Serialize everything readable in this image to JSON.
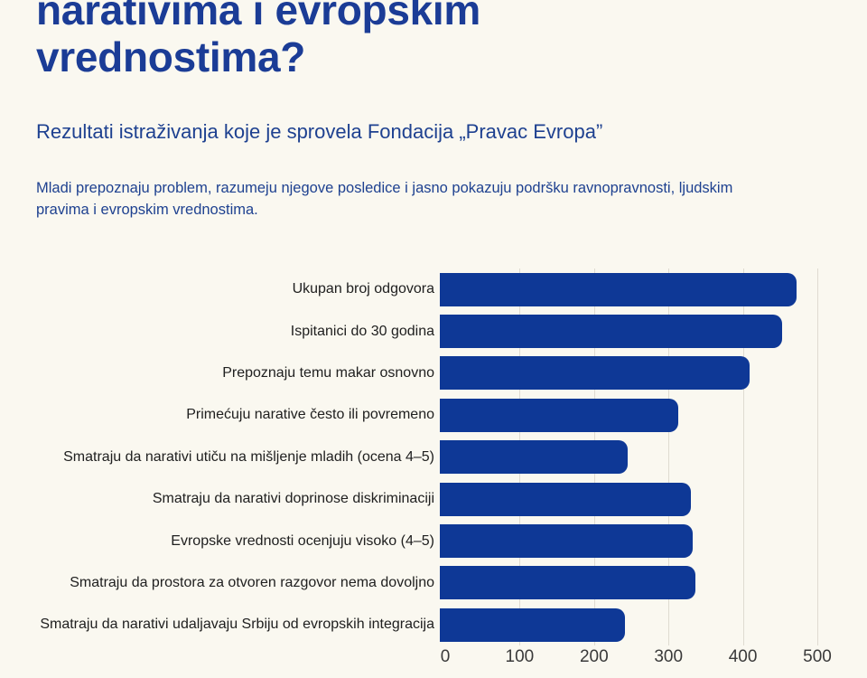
{
  "header": {
    "title": "narativima i evropskim vrednostima?",
    "subtitle": "Rezultati istraživanja koje je sprovela Fondacija „Pravac Evropa”",
    "description": "Mladi prepoznaju problem, razumeju njegove posledice i jasno pokazuju podršku ravnopravnosti, ljudskim pravima i evropskim vrednostima."
  },
  "colors": {
    "background": "#FAF8F0",
    "title": "#1B3C96",
    "body_text": "#1E4190",
    "bar": "#0E3896",
    "gridline": "#DFDBD1",
    "bar_label": "#202020",
    "tick_label": "#3A3A3A"
  },
  "chart_data": {
    "type": "bar",
    "orientation": "horizontal",
    "title": "",
    "xlabel": "",
    "ylabel": "",
    "categories": [
      "Ukupan broj odgovora",
      "Ispitanici do 30 godina",
      "Prepoznaju temu makar osnovno",
      "Primećuju narative često ili povremeno",
      "Smatraju da narativi utiču na mišljenje mladih (ocena 4–5)",
      "Smatraju da narativi doprinose diskriminaciji",
      "Evropske vrednosti ocenjuju visoko (4–5)",
      "Smatraju da prostora za otvoren razgovor nema dovoljno",
      "Smatraju da narativi udaljavaju Srbiju od evropskih integracija"
    ],
    "values": [
      479,
      460,
      416,
      320,
      252,
      337,
      340,
      344,
      249
    ],
    "xlim": [
      0,
      500
    ],
    "xticks": [
      0,
      100,
      200,
      300,
      400,
      500
    ],
    "grid": "vertical-at-xticks",
    "legend": "none",
    "bar_corner": "rounded-right"
  }
}
